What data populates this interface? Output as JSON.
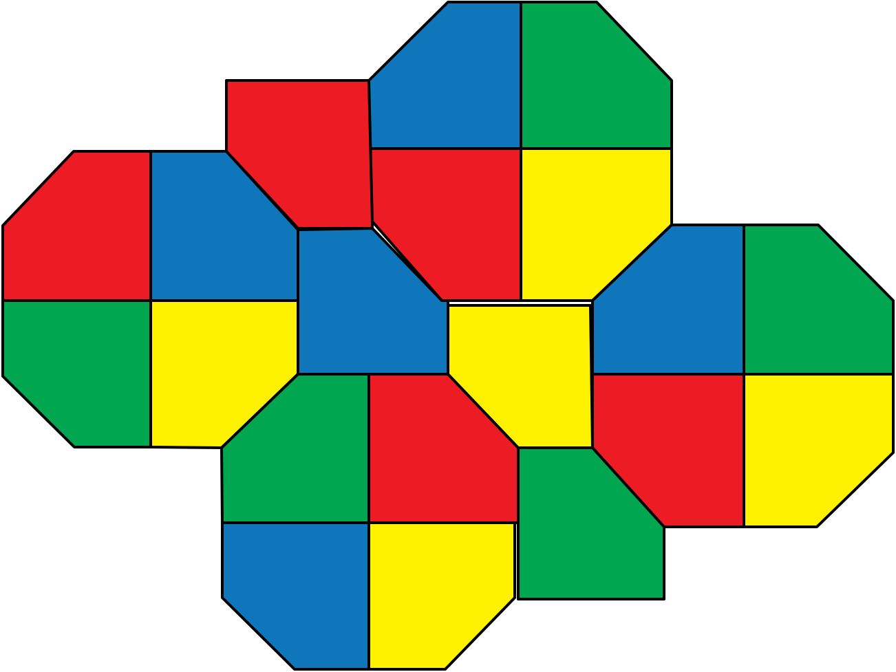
{
  "palette": {
    "red": "#ED1C24",
    "blue": "#1076BC",
    "green": "#00A650",
    "yellow": "#FFF200",
    "outline": "#000000",
    "background": "#FFFFFF"
  },
  "pieces": [
    {
      "name": "octagon-left-red-quadrant",
      "color": "red"
    },
    {
      "name": "octagon-left-blue-quadrant",
      "color": "blue"
    },
    {
      "name": "octagon-left-green-quadrant",
      "color": "green"
    },
    {
      "name": "octagon-left-yellow-quadrant",
      "color": "yellow"
    },
    {
      "name": "octagon-top-blue-quadrant",
      "color": "blue"
    },
    {
      "name": "octagon-top-green-quadrant",
      "color": "green"
    },
    {
      "name": "octagon-top-red-quadrant",
      "color": "red"
    },
    {
      "name": "octagon-top-yellow-quadrant",
      "color": "yellow"
    },
    {
      "name": "octagon-right-blue-quadrant",
      "color": "blue"
    },
    {
      "name": "octagon-right-green-quadrant",
      "color": "green"
    },
    {
      "name": "octagon-right-red-quadrant",
      "color": "red"
    },
    {
      "name": "octagon-right-yellow-quadrant",
      "color": "yellow"
    },
    {
      "name": "octagon-bottom-green-quadrant",
      "color": "green"
    },
    {
      "name": "octagon-bottom-red-quadrant",
      "color": "red"
    },
    {
      "name": "octagon-bottom-blue-quadrant",
      "color": "blue"
    },
    {
      "name": "octagon-bottom-yellow-quadrant",
      "color": "yellow"
    },
    {
      "name": "connector-red-upper",
      "color": "red"
    },
    {
      "name": "connector-blue-center",
      "color": "blue"
    },
    {
      "name": "connector-yellow-center",
      "color": "yellow"
    },
    {
      "name": "connector-green-lower",
      "color": "green"
    }
  ]
}
